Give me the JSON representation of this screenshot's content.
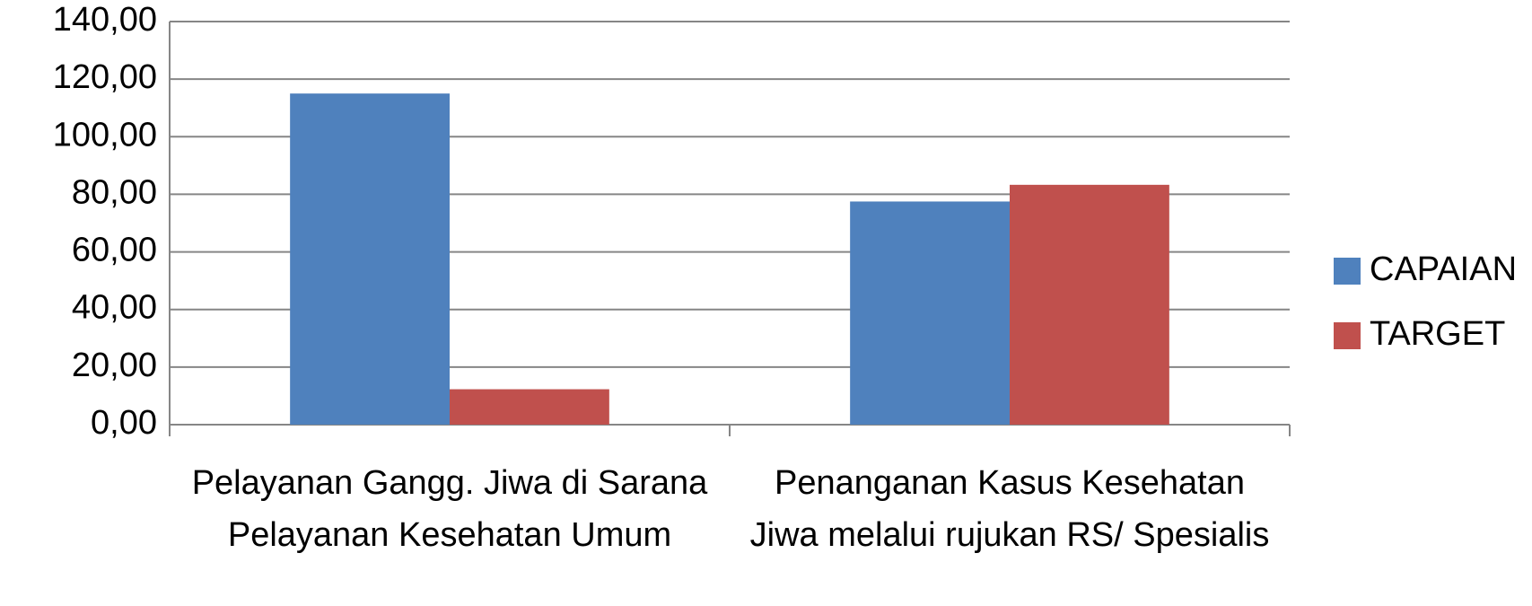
{
  "chart_data": {
    "type": "bar",
    "categories": [
      "Pelayanan Gangg. Jiwa di Sarana Pelayanan Kesehatan Umum",
      "Penanganan Kasus Kesehatan Jiwa melalui rujukan RS/ Spesialis"
    ],
    "series": [
      {
        "name": "CAPAIAN",
        "color": "#4f81bd",
        "values": [
          115.0,
          77.5
        ]
      },
      {
        "name": "TARGET",
        "color": "#c0504d",
        "values": [
          12.3,
          83.3
        ]
      }
    ],
    "ylim": [
      0,
      140
    ],
    "yticks": [
      {
        "value": 0,
        "label": "0,00"
      },
      {
        "value": 20,
        "label": "20,00"
      },
      {
        "value": 40,
        "label": "40,00"
      },
      {
        "value": 60,
        "label": "60,00"
      },
      {
        "value": 80,
        "label": "80,00"
      },
      {
        "value": 100,
        "label": "100,00"
      },
      {
        "value": 120,
        "label": "120,00"
      },
      {
        "value": 140,
        "label": "140,00"
      }
    ],
    "grid": true,
    "legend": "right"
  }
}
